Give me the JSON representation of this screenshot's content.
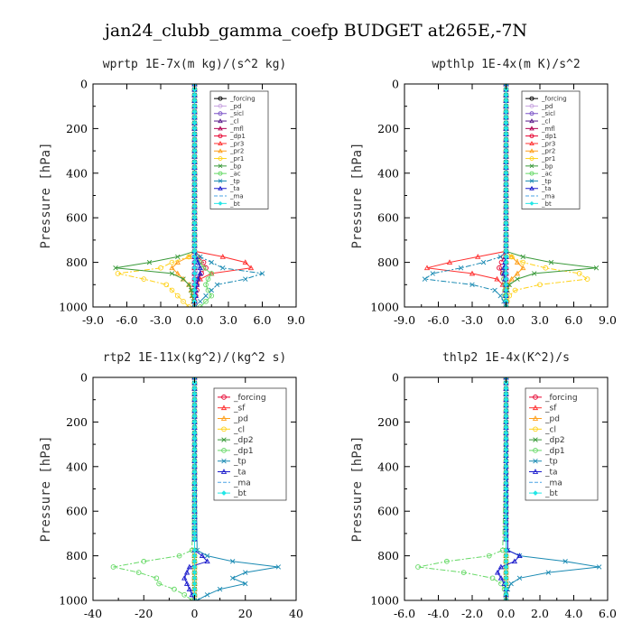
{
  "figure": {
    "title": "jan24_clubb_gamma_coefp  BUDGET at265E,-7N"
  },
  "chart_data": [
    {
      "type": "line",
      "title": "wprtp  1E-7x(m kg)/(s^2 kg)",
      "ylabel": "Pressure [hPa]",
      "xlim": [
        -9,
        9
      ],
      "ylim": [
        1000,
        0
      ],
      "x_ticks": [
        "-9.0",
        "-6.0",
        "-3.0",
        "0.0",
        "3.0",
        "6.0",
        "9.0"
      ],
      "x_tick_values": [
        -9,
        -6,
        -3,
        0,
        3,
        6,
        9
      ],
      "y_ticks": [
        "0",
        "200",
        "400",
        "600",
        "800",
        "1000"
      ],
      "y_tick_values": [
        0,
        200,
        400,
        600,
        800,
        1000
      ],
      "legend": "upper-right",
      "pressure": [
        750,
        775,
        800,
        825,
        850,
        875,
        900,
        925,
        950,
        975,
        1000
      ],
      "series": [
        {
          "name": "_forcing",
          "color": "#000000",
          "marker": "circle",
          "values": [
            0,
            0,
            0,
            0,
            0,
            0,
            0,
            0,
            0,
            0,
            0
          ]
        },
        {
          "name": "_pd",
          "color": "#c7a3e0",
          "marker": "circle",
          "values": [
            0,
            0,
            0,
            0,
            0,
            0,
            0,
            0,
            0,
            0,
            0
          ]
        },
        {
          "name": "_sicl",
          "color": "#7a52c7",
          "marker": "circle",
          "values": [
            0,
            0,
            0,
            0,
            0,
            0,
            0,
            0,
            0,
            0,
            0
          ]
        },
        {
          "name": "_cl",
          "color": "#5a1a8a",
          "marker": "triangle",
          "values": [
            0,
            0,
            0,
            0,
            0,
            0,
            0,
            0,
            0,
            0,
            0
          ]
        },
        {
          "name": "_mfl",
          "color": "#b00050",
          "marker": "triangle",
          "values": [
            0,
            0,
            0,
            0,
            0,
            0,
            0,
            0,
            0,
            0,
            0
          ]
        },
        {
          "name": "_dp1",
          "color": "#e6002e",
          "marker": "circle",
          "values": [
            0,
            0.3,
            0.8,
            1.0,
            0.6,
            0.3,
            0.2,
            0.2,
            0.1,
            0,
            0
          ]
        },
        {
          "name": "_pr3",
          "color": "#ff3030",
          "marker": "triangle",
          "values": [
            0,
            2.5,
            4.5,
            5.0,
            1.5,
            0.5,
            0.2,
            0.1,
            0.1,
            0,
            0
          ]
        },
        {
          "name": "_pr2",
          "color": "#ff9f1a",
          "marker": "triangle",
          "values": [
            0,
            -0.5,
            -1.5,
            -2.0,
            -1.5,
            -1.0,
            -0.5,
            -0.3,
            -0.2,
            -0.1,
            0
          ]
        },
        {
          "name": "_pr1",
          "color": "#ffd21a",
          "marker": "circle",
          "values": [
            0,
            -0.5,
            -2.0,
            -3.0,
            -6.8,
            -4.5,
            -2.5,
            -2.0,
            -1.5,
            -1.0,
            -0.5
          ]
        },
        {
          "name": "_bp",
          "color": "#3a9a3a",
          "marker": "cross",
          "values": [
            0,
            -1.5,
            -4.0,
            -7.0,
            -2.0,
            -1.0,
            -0.5,
            -0.3,
            -0.2,
            -0.1,
            0
          ]
        },
        {
          "name": "_ac",
          "color": "#66d966",
          "marker": "circle",
          "values": [
            0,
            0.2,
            0.5,
            0.8,
            1.5,
            1.2,
            1.0,
            1.2,
            1.5,
            1.0,
            0.5
          ]
        },
        {
          "name": "_tp",
          "color": "#1a8ab3",
          "marker": "cross",
          "values": [
            0,
            0.5,
            1.5,
            2.5,
            6.0,
            4.5,
            2.0,
            1.5,
            1.0,
            0.5,
            0
          ]
        },
        {
          "name": "_ta",
          "color": "#1a1acc",
          "marker": "triangle",
          "values": [
            0,
            0.1,
            0.3,
            0.5,
            0.5,
            0.3,
            0.2,
            0.1,
            0.1,
            0,
            0
          ]
        },
        {
          "name": "_ma",
          "color": "#4aa3e6",
          "marker": "none",
          "values": [
            0,
            0,
            0.2,
            0.3,
            0.2,
            0.1,
            0.1,
            0,
            0,
            0,
            0
          ]
        },
        {
          "name": "_bt",
          "color": "#22e6e6",
          "marker": "diamond",
          "values": [
            0,
            0,
            0,
            0,
            0,
            0,
            0,
            0,
            0,
            0,
            0
          ]
        }
      ]
    },
    {
      "type": "line",
      "title": "wpthlp  1E-4x(m K)/s^2",
      "ylabel": "Pressure [hPa]",
      "xlim": [
        -9,
        9
      ],
      "ylim": [
        1000,
        0
      ],
      "x_ticks": [
        "-9.0",
        "-6.0",
        "-3.0",
        "0.0",
        "3.0",
        "6.0",
        "9.0"
      ],
      "x_tick_values": [
        -9,
        -6,
        -3,
        0,
        3,
        6,
        9
      ],
      "y_ticks": [
        "0",
        "200",
        "400",
        "600",
        "800",
        "1000"
      ],
      "y_tick_values": [
        0,
        200,
        400,
        600,
        800,
        1000
      ],
      "legend": "upper-right",
      "pressure": [
        750,
        775,
        800,
        825,
        850,
        875,
        900,
        925,
        950,
        975,
        1000
      ],
      "series": [
        {
          "name": "_forcing",
          "color": "#000000",
          "marker": "circle",
          "values": [
            0,
            0,
            0,
            0,
            0,
            0,
            0,
            0,
            0,
            0,
            0
          ]
        },
        {
          "name": "_pd",
          "color": "#c7a3e0",
          "marker": "circle",
          "values": [
            0,
            0,
            0,
            0,
            0,
            0,
            0,
            0,
            0,
            0,
            0
          ]
        },
        {
          "name": "_sicl",
          "color": "#7a52c7",
          "marker": "circle",
          "values": [
            0,
            0,
            0,
            0,
            0,
            0,
            0,
            0,
            0,
            0,
            0
          ]
        },
        {
          "name": "_cl",
          "color": "#5a1a8a",
          "marker": "triangle",
          "values": [
            0,
            0,
            0,
            0,
            0,
            0,
            0,
            0,
            0,
            0,
            0
          ]
        },
        {
          "name": "_mfl",
          "color": "#b00050",
          "marker": "triangle",
          "values": [
            0,
            0,
            0,
            0,
            0,
            0,
            0,
            0,
            0,
            0,
            0
          ]
        },
        {
          "name": "_dp1",
          "color": "#e6002e",
          "marker": "circle",
          "values": [
            0,
            -0.2,
            -0.4,
            -0.6,
            -0.3,
            -0.2,
            -0.1,
            0,
            0,
            0,
            0
          ]
        },
        {
          "name": "_pr3",
          "color": "#ff3030",
          "marker": "triangle",
          "values": [
            0,
            -2.5,
            -5.0,
            -7.0,
            -3.0,
            -0.8,
            -0.3,
            -0.1,
            0,
            0,
            0
          ]
        },
        {
          "name": "_pr2",
          "color": "#ff9f1a",
          "marker": "triangle",
          "values": [
            0,
            0.5,
            1.0,
            1.5,
            1.0,
            0.5,
            0.2,
            0.1,
            0,
            0,
            0
          ]
        },
        {
          "name": "_pr1",
          "color": "#ffd21a",
          "marker": "circle",
          "values": [
            0,
            0.5,
            1.5,
            3.5,
            6.5,
            7.2,
            3.0,
            0.8,
            0.3,
            0.1,
            0
          ]
        },
        {
          "name": "_bp",
          "color": "#3a9a3a",
          "marker": "cross",
          "values": [
            0,
            1.5,
            4.0,
            8.0,
            2.5,
            1.0,
            0.3,
            0.1,
            0,
            0,
            0
          ]
        },
        {
          "name": "_ac",
          "color": "#66d966",
          "marker": "circle",
          "values": [
            0,
            0,
            0,
            -0.1,
            -0.2,
            -0.2,
            -0.1,
            -0.1,
            -0.1,
            0,
            0
          ]
        },
        {
          "name": "_tp",
          "color": "#1a8ab3",
          "marker": "cross",
          "values": [
            0,
            -0.5,
            -2.0,
            -4.0,
            -6.5,
            -7.2,
            -3.0,
            -1.0,
            -0.5,
            -0.2,
            0
          ]
        },
        {
          "name": "_ta",
          "color": "#1a1acc",
          "marker": "triangle",
          "values": [
            0,
            0,
            -0.1,
            -0.2,
            -0.2,
            -0.1,
            0,
            0,
            0,
            0,
            0
          ]
        },
        {
          "name": "_ma",
          "color": "#4aa3e6",
          "marker": "none",
          "values": [
            0,
            0,
            0,
            -0.1,
            -0.1,
            0,
            0,
            0,
            0,
            0,
            0
          ]
        },
        {
          "name": "_bt",
          "color": "#22e6e6",
          "marker": "diamond",
          "values": [
            0,
            0,
            0,
            0,
            0,
            0,
            0,
            0,
            0,
            0,
            0
          ]
        }
      ]
    },
    {
      "type": "line",
      "title": "rtp2  1E-11x(kg^2)/(kg^2 s)",
      "ylabel": "Pressure [hPa]",
      "xlim": [
        -40,
        40
      ],
      "ylim": [
        1000,
        0
      ],
      "x_ticks": [
        "-40",
        "-20",
        "0",
        "20",
        "40"
      ],
      "x_tick_values": [
        -40,
        -20,
        0,
        20,
        40
      ],
      "y_ticks": [
        "0",
        "200",
        "400",
        "600",
        "800",
        "1000"
      ],
      "y_tick_values": [
        0,
        200,
        400,
        600,
        800,
        1000
      ],
      "legend": "upper-right",
      "pressure": [
        775,
        800,
        825,
        850,
        875,
        900,
        925,
        950,
        975,
        1000
      ],
      "series": [
        {
          "name": "_forcing",
          "color": "#e6002e",
          "marker": "circle",
          "values": [
            0,
            0,
            0,
            0,
            0,
            0,
            0,
            0,
            0,
            0
          ]
        },
        {
          "name": "_sf",
          "color": "#ff3030",
          "marker": "triangle",
          "values": [
            0,
            0,
            0,
            0,
            0,
            0,
            0,
            0,
            0,
            0
          ]
        },
        {
          "name": "_pd",
          "color": "#ff9f1a",
          "marker": "triangle",
          "values": [
            0,
            0,
            0,
            0,
            0,
            0,
            0,
            0,
            0,
            0
          ]
        },
        {
          "name": "_cl",
          "color": "#ffd21a",
          "marker": "circle",
          "values": [
            0,
            0,
            0,
            0,
            0,
            0,
            0,
            0,
            0,
            0
          ]
        },
        {
          "name": "_dp2",
          "color": "#3a9a3a",
          "marker": "cross",
          "values": [
            0,
            0,
            0,
            0,
            0,
            0,
            0,
            0,
            0,
            0
          ]
        },
        {
          "name": "_dp1",
          "color": "#66d966",
          "marker": "circle",
          "values": [
            -1,
            -6,
            -20,
            -32,
            -22,
            -15,
            -14,
            -8,
            -4,
            -1
          ]
        },
        {
          "name": "_tp",
          "color": "#1a8ab3",
          "marker": "cross",
          "values": [
            1,
            5,
            15,
            33,
            20,
            15,
            20,
            10,
            5,
            1
          ]
        },
        {
          "name": "_ta",
          "color": "#1a1acc",
          "marker": "triangle",
          "values": [
            0,
            3,
            5,
            -2,
            -3,
            -4,
            -3,
            -2,
            -1,
            0
          ]
        },
        {
          "name": "_ma",
          "color": "#4aa3e6",
          "marker": "none",
          "values": [
            0,
            0,
            0,
            0,
            0,
            0,
            0,
            0,
            0,
            0
          ]
        },
        {
          "name": "_bt",
          "color": "#22e6e6",
          "marker": "diamond",
          "values": [
            0,
            0,
            0,
            0,
            0,
            0,
            0,
            0,
            0,
            0
          ]
        }
      ]
    },
    {
      "type": "line",
      "title": "thlp2  1E-4x(K^2)/s",
      "ylabel": "Pressure [hPa]",
      "xlim": [
        -6,
        6
      ],
      "ylim": [
        1000,
        0
      ],
      "x_ticks": [
        "-6.0",
        "-4.0",
        "-2.0",
        "0.0",
        "2.0",
        "4.0",
        "6.0"
      ],
      "x_tick_values": [
        -6,
        -4,
        -2,
        0,
        2,
        4,
        6
      ],
      "y_ticks": [
        "0",
        "200",
        "400",
        "600",
        "800",
        "1000"
      ],
      "y_tick_values": [
        0,
        200,
        400,
        600,
        800,
        1000
      ],
      "legend": "upper-right",
      "pressure": [
        775,
        800,
        825,
        850,
        875,
        900,
        925,
        950,
        975,
        1000
      ],
      "series": [
        {
          "name": "_forcing",
          "color": "#e6002e",
          "marker": "circle",
          "values": [
            0,
            0,
            0,
            0,
            0,
            0,
            0,
            0,
            0,
            0
          ]
        },
        {
          "name": "_sf",
          "color": "#ff3030",
          "marker": "triangle",
          "values": [
            0,
            0,
            0,
            0,
            0,
            0,
            0,
            0,
            0,
            0
          ]
        },
        {
          "name": "_pd",
          "color": "#ff9f1a",
          "marker": "triangle",
          "values": [
            0,
            0,
            0,
            0,
            0,
            0,
            0,
            0,
            0,
            0
          ]
        },
        {
          "name": "_cl",
          "color": "#ffd21a",
          "marker": "circle",
          "values": [
            0,
            0,
            0,
            0,
            0,
            0,
            0,
            0,
            0,
            0
          ]
        },
        {
          "name": "_dp2",
          "color": "#3a9a3a",
          "marker": "cross",
          "values": [
            0,
            0,
            0,
            0,
            0,
            0,
            0,
            0,
            0,
            0
          ]
        },
        {
          "name": "_dp1",
          "color": "#66d966",
          "marker": "circle",
          "values": [
            -0.2,
            -1.0,
            -3.5,
            -5.2,
            -2.5,
            -0.8,
            -0.3,
            -0.1,
            0,
            0
          ]
        },
        {
          "name": "_tp",
          "color": "#1a8ab3",
          "marker": "cross",
          "values": [
            0.1,
            0.8,
            3.5,
            5.5,
            2.5,
            0.8,
            0.3,
            0.1,
            0,
            0
          ]
        },
        {
          "name": "_ta",
          "color": "#1a1acc",
          "marker": "triangle",
          "values": [
            0.1,
            0.8,
            0.5,
            -0.3,
            -0.5,
            -0.3,
            -0.1,
            0,
            0,
            0
          ]
        },
        {
          "name": "_ma",
          "color": "#4aa3e6",
          "marker": "none",
          "values": [
            0,
            0,
            0,
            0,
            0,
            0,
            0,
            0,
            0,
            0
          ]
        },
        {
          "name": "_bt",
          "color": "#22e6e6",
          "marker": "diamond",
          "values": [
            0,
            0,
            0,
            0,
            0,
            0,
            0,
            0,
            0,
            0
          ]
        }
      ]
    }
  ]
}
